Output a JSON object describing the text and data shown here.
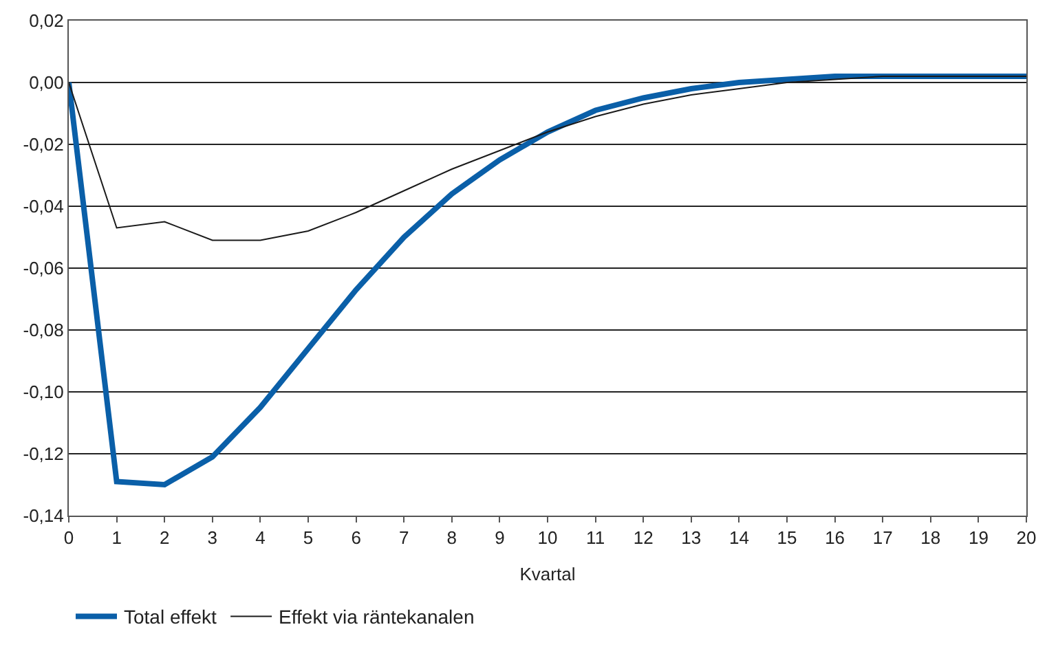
{
  "chart_data": {
    "type": "line",
    "xlabel": "Kvartal",
    "x": [
      0,
      1,
      2,
      3,
      4,
      5,
      6,
      7,
      8,
      9,
      10,
      11,
      12,
      13,
      14,
      15,
      16,
      17,
      18,
      19,
      20
    ],
    "series": [
      {
        "name": "Total effekt",
        "color": "#0a5fa8",
        "values": [
          0,
          -0.129,
          -0.13,
          -0.121,
          -0.105,
          -0.086,
          -0.067,
          -0.05,
          -0.036,
          -0.025,
          -0.016,
          -0.009,
          -0.005,
          -0.002,
          0.0,
          0.001,
          0.002,
          0.002,
          0.002,
          0.002,
          0.002
        ]
      },
      {
        "name": "Effekt via räntekanalen",
        "color": "#1a1a1a",
        "values": [
          0,
          -0.047,
          -0.045,
          -0.051,
          -0.051,
          -0.048,
          -0.042,
          -0.035,
          -0.028,
          -0.022,
          -0.016,
          -0.011,
          -0.007,
          -0.004,
          -0.002,
          0.0,
          0.001,
          0.002,
          0.002,
          0.002,
          0.002
        ]
      }
    ],
    "xlim": [
      0,
      20
    ],
    "xticks": [
      0,
      1,
      2,
      3,
      4,
      5,
      6,
      7,
      8,
      9,
      10,
      11,
      12,
      13,
      14,
      15,
      16,
      17,
      18,
      19,
      20
    ],
    "ylim": [
      -0.14,
      0.02
    ],
    "yticks": [
      {
        "value": 0.02,
        "label": "0,02"
      },
      {
        "value": 0,
        "label": "0,00"
      },
      {
        "value": -0.02,
        "label": "-0,02"
      },
      {
        "value": -0.04,
        "label": "-0,04"
      },
      {
        "value": -0.06,
        "label": "-0,06"
      },
      {
        "value": -0.08,
        "label": "-0,08"
      },
      {
        "value": -0.1,
        "label": "-0,10"
      },
      {
        "value": -0.12,
        "label": "-0,12"
      },
      {
        "value": -0.14,
        "label": "-0,14"
      }
    ],
    "grid": "y",
    "legend": "bottom left",
    "marker": "none",
    "line_style": "solid"
  }
}
